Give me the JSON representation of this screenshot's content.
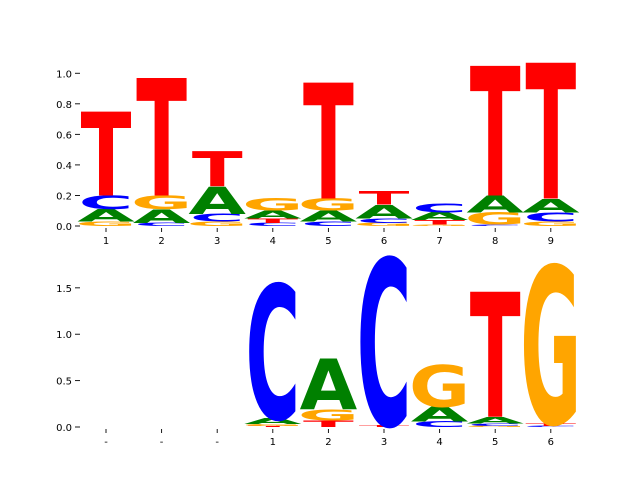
{
  "colors": {
    "A": "#008000",
    "C": "#0000ff",
    "G": "#ffa500",
    "T": "#ff0000"
  },
  "chart_data": [
    {
      "type": "sequence-logo",
      "title": "",
      "xlabel": "",
      "ylabel": "",
      "ylim": [
        0,
        1.1
      ],
      "yticks": [
        "0.0",
        "0.2",
        "0.4",
        "0.6",
        "0.8",
        "1.0"
      ],
      "grid": false,
      "positions": [
        {
          "label": "1",
          "letters": [
            {
              "b": "G",
              "h": 0.03
            },
            {
              "b": "A",
              "h": 0.08
            },
            {
              "b": "C",
              "h": 0.09
            },
            {
              "b": "T",
              "h": 0.55
            }
          ]
        },
        {
          "label": "2",
          "letters": [
            {
              "b": "C",
              "h": 0.02
            },
            {
              "b": "A",
              "h": 0.09
            },
            {
              "b": "G",
              "h": 0.09
            },
            {
              "b": "T",
              "h": 0.77
            }
          ]
        },
        {
          "label": "3",
          "letters": [
            {
              "b": "G",
              "h": 0.03
            },
            {
              "b": "C",
              "h": 0.05
            },
            {
              "b": "A",
              "h": 0.18
            },
            {
              "b": "T",
              "h": 0.23
            }
          ]
        },
        {
          "label": "4",
          "letters": [
            {
              "b": "C",
              "h": 0.02
            },
            {
              "b": "T",
              "h": 0.03
            },
            {
              "b": "A",
              "h": 0.05
            },
            {
              "b": "G",
              "h": 0.08
            }
          ]
        },
        {
          "label": "5",
          "letters": [
            {
              "b": "C",
              "h": 0.03
            },
            {
              "b": "A",
              "h": 0.07
            },
            {
              "b": "G",
              "h": 0.08
            },
            {
              "b": "T",
              "h": 0.76
            }
          ]
        },
        {
          "label": "6",
          "letters": [
            {
              "b": "G",
              "h": 0.02
            },
            {
              "b": "C",
              "h": 0.03
            },
            {
              "b": "A",
              "h": 0.09
            },
            {
              "b": "T",
              "h": 0.09
            }
          ]
        },
        {
          "label": "7",
          "letters": [
            {
              "b": "G",
              "h": 0.01
            },
            {
              "b": "T",
              "h": 0.03
            },
            {
              "b": "A",
              "h": 0.05
            },
            {
              "b": "C",
              "h": 0.06
            }
          ]
        },
        {
          "label": "8",
          "letters": [
            {
              "b": "C",
              "h": 0.01
            },
            {
              "b": "G",
              "h": 0.08
            },
            {
              "b": "A",
              "h": 0.11
            },
            {
              "b": "T",
              "h": 0.85
            }
          ]
        },
        {
          "label": "9",
          "letters": [
            {
              "b": "G",
              "h": 0.03
            },
            {
              "b": "C",
              "h": 0.06
            },
            {
              "b": "A",
              "h": 0.09
            },
            {
              "b": "T",
              "h": 0.89
            }
          ]
        }
      ]
    },
    {
      "type": "sequence-logo",
      "title": "",
      "xlabel": "",
      "ylabel": "",
      "ylim": [
        0,
        1.8
      ],
      "yticks": [
        "0.0",
        "0.5",
        "1.0",
        "1.5"
      ],
      "grid": false,
      "positions": [
        {
          "label": "-",
          "letters": []
        },
        {
          "label": "-",
          "letters": []
        },
        {
          "label": "-",
          "letters": []
        },
        {
          "label": "1",
          "letters": [
            {
              "b": "T",
              "h": 0.01
            },
            {
              "b": "G",
              "h": 0.02
            },
            {
              "b": "A",
              "h": 0.06
            },
            {
              "b": "C",
              "h": 1.45
            }
          ]
        },
        {
          "label": "2",
          "letters": [
            {
              "b": "T",
              "h": 0.07
            },
            {
              "b": "G",
              "h": 0.12
            },
            {
              "b": "A",
              "h": 0.55
            }
          ]
        },
        {
          "label": "3",
          "letters": [
            {
              "b": "T",
              "h": 0.02
            },
            {
              "b": "C",
              "h": 1.8
            }
          ]
        },
        {
          "label": "4",
          "letters": [
            {
              "b": "C",
              "h": 0.06
            },
            {
              "b": "A",
              "h": 0.16
            },
            {
              "b": "G",
              "h": 0.45
            }
          ]
        },
        {
          "label": "5",
          "letters": [
            {
              "b": "G",
              "h": 0.01
            },
            {
              "b": "C",
              "h": 0.03
            },
            {
              "b": "A",
              "h": 0.07
            },
            {
              "b": "T",
              "h": 1.35
            }
          ]
        },
        {
          "label": "6",
          "letters": [
            {
              "b": "C",
              "h": 0.01
            },
            {
              "b": "T",
              "h": 0.03
            },
            {
              "b": "G",
              "h": 1.7
            }
          ]
        }
      ]
    }
  ]
}
